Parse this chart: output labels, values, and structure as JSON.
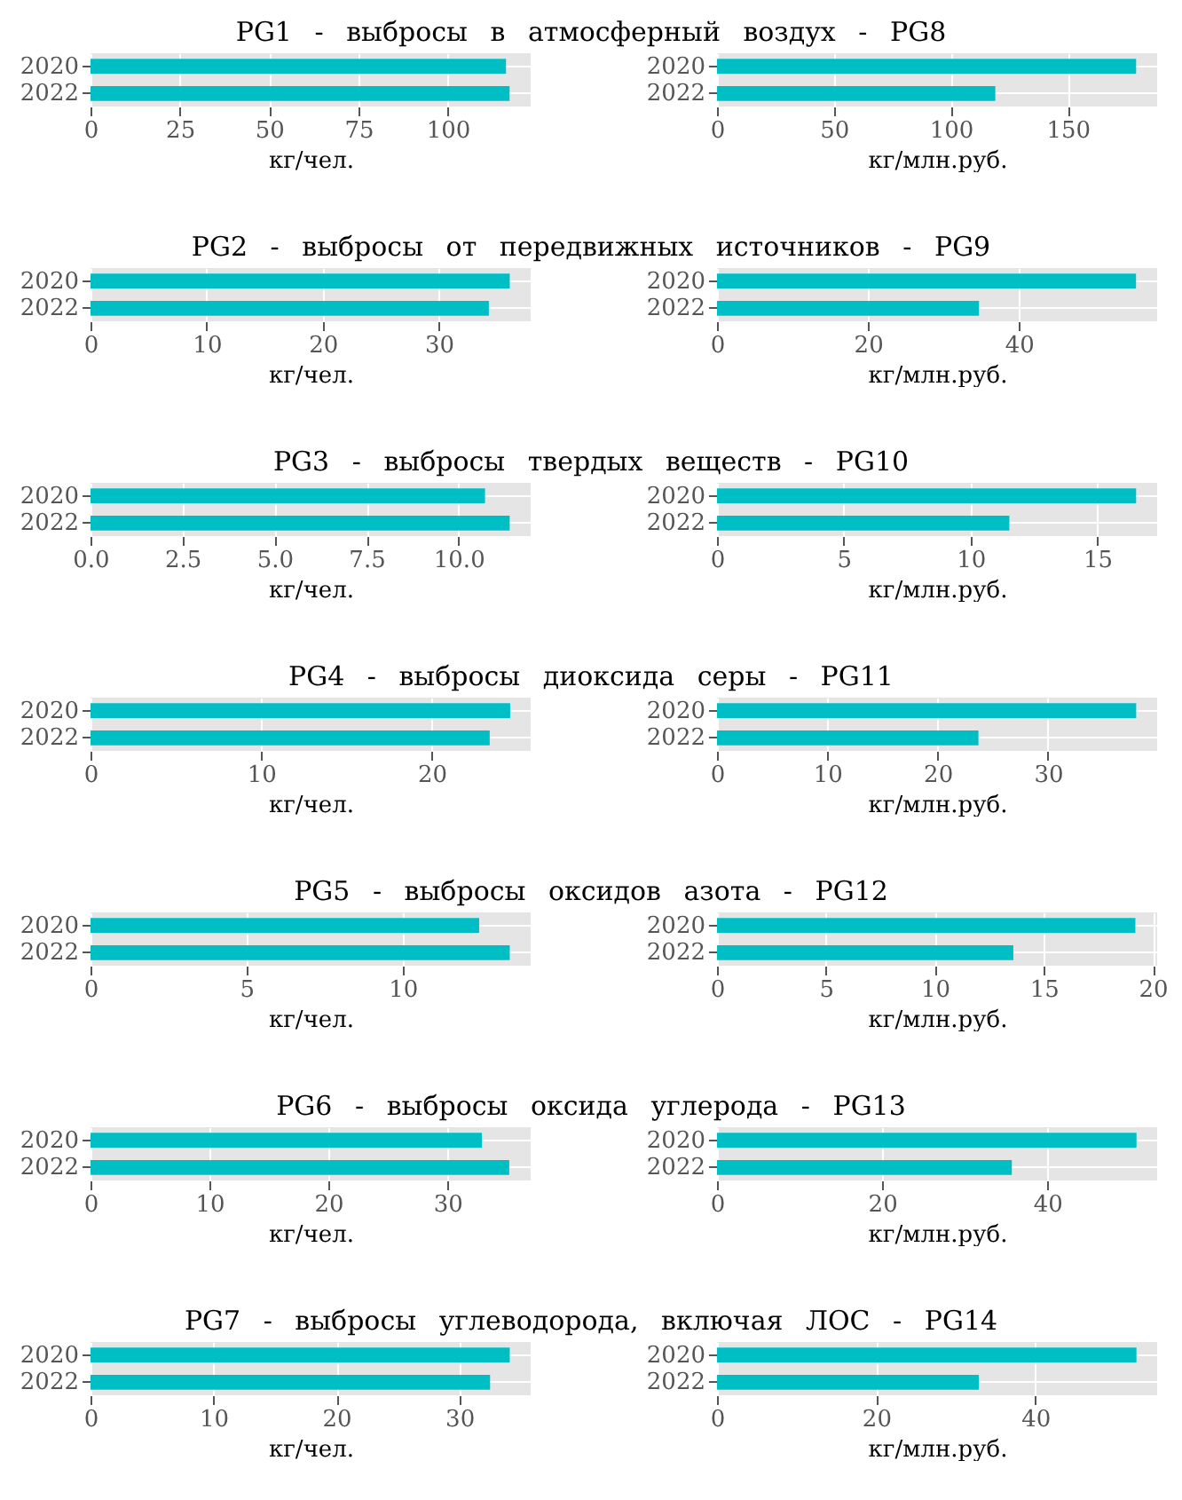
{
  "chart_data": [
    {
      "type": "bar",
      "orientation": "horizontal",
      "title": "PG1 - выбросы в атмосферный воздух - PG8",
      "categories": [
        "2020",
        "2022"
      ],
      "values": [
        116.3,
        117.3
      ],
      "color": "#00bfc4",
      "xlabel": "кг/чел.",
      "xlim": [
        0,
        123.2
      ],
      "xticks": [
        0,
        25,
        50,
        75,
        100
      ],
      "grid": true
    },
    {
      "type": "bar",
      "orientation": "horizontal",
      "categories": [
        "2020",
        "2022"
      ],
      "values": [
        179.2,
        119.0
      ],
      "color": "#00bfc4",
      "xlabel": "кг/млн.руб.",
      "xlim": [
        0,
        188.2
      ],
      "xticks": [
        0,
        50,
        100,
        150
      ],
      "grid": true
    },
    {
      "type": "bar",
      "orientation": "horizontal",
      "title": "PG2 - выбросы от передвижных источников - PG9",
      "categories": [
        "2020",
        "2022"
      ],
      "values": [
        36.1,
        34.3
      ],
      "color": "#00bfc4",
      "xlabel": "кг/чел.",
      "xlim": [
        0,
        37.9
      ],
      "xticks": [
        0,
        10,
        20,
        30
      ],
      "grid": true
    },
    {
      "type": "bar",
      "orientation": "horizontal",
      "categories": [
        "2020",
        "2022"
      ],
      "values": [
        55.5,
        34.7
      ],
      "color": "#00bfc4",
      "xlabel": "кг/млн.руб.",
      "xlim": [
        0,
        58.3
      ],
      "xticks": [
        0,
        20,
        40
      ],
      "grid": true
    },
    {
      "type": "bar",
      "orientation": "horizontal",
      "title": "PG3 - выбросы твердых веществ - PG10",
      "categories": [
        "2020",
        "2022"
      ],
      "values": [
        10.72,
        11.39
      ],
      "color": "#00bfc4",
      "xlabel": "кг/чел.",
      "xlim": [
        0,
        11.96
      ],
      "xticks": [
        {
          "value": 0,
          "label": "0.0"
        },
        2.5,
        {
          "value": 5,
          "label": "5.0"
        },
        7.5,
        {
          "value": 10,
          "label": "10.0"
        }
      ],
      "grid": true
    },
    {
      "type": "bar",
      "orientation": "horizontal",
      "categories": [
        "2020",
        "2022"
      ],
      "values": [
        16.53,
        11.53
      ],
      "color": "#00bfc4",
      "xlabel": "кг/млн.руб.",
      "xlim": [
        0,
        17.36
      ],
      "xticks": [
        0,
        5,
        10,
        15
      ],
      "grid": true
    },
    {
      "type": "bar",
      "orientation": "horizontal",
      "title": "PG4 - выбросы диоксида серы - PG11",
      "categories": [
        "2020",
        "2022"
      ],
      "values": [
        24.6,
        23.4
      ],
      "color": "#00bfc4",
      "xlabel": "кг/чел.",
      "xlim": [
        0,
        25.8
      ],
      "xticks": [
        0,
        10,
        20
      ],
      "grid": true
    },
    {
      "type": "bar",
      "orientation": "horizontal",
      "categories": [
        "2020",
        "2022"
      ],
      "values": [
        38.0,
        23.7
      ],
      "color": "#00bfc4",
      "xlabel": "кг/млн.руб.",
      "xlim": [
        0,
        39.9
      ],
      "xticks": [
        0,
        10,
        20,
        30
      ],
      "grid": true
    },
    {
      "type": "bar",
      "orientation": "horizontal",
      "title": "PG5 - выбросы оксидов азота - PG12",
      "categories": [
        "2020",
        "2022"
      ],
      "values": [
        12.45,
        13.43
      ],
      "color": "#00bfc4",
      "xlabel": "кг/чел.",
      "xlim": [
        0,
        14.1
      ],
      "xticks": [
        0,
        5,
        10
      ],
      "grid": true
    },
    {
      "type": "bar",
      "orientation": "horizontal",
      "categories": [
        "2020",
        "2022"
      ],
      "values": [
        19.2,
        13.6
      ],
      "color": "#00bfc4",
      "xlabel": "кг/млн.руб.",
      "xlim": [
        0,
        20.2
      ],
      "xticks": [
        0,
        5,
        10,
        15,
        20
      ],
      "grid": true
    },
    {
      "type": "bar",
      "orientation": "horizontal",
      "title": "PG6 - выбросы оксида углерода - PG13",
      "categories": [
        "2020",
        "2022"
      ],
      "values": [
        32.9,
        35.2
      ],
      "color": "#00bfc4",
      "xlabel": "кг/чел.",
      "xlim": [
        0,
        37.0
      ],
      "xticks": [
        0,
        10,
        20,
        30
      ],
      "grid": true
    },
    {
      "type": "bar",
      "orientation": "horizontal",
      "categories": [
        "2020",
        "2022"
      ],
      "values": [
        50.8,
        35.7
      ],
      "color": "#00bfc4",
      "xlabel": "кг/млн.руб.",
      "xlim": [
        0,
        53.3
      ],
      "xticks": [
        0,
        20,
        40
      ],
      "grid": true
    },
    {
      "type": "bar",
      "orientation": "horizontal",
      "title": "PG7 - выбросы углеводорода, включая ЛОС - PG14",
      "categories": [
        "2020",
        "2022"
      ],
      "values": [
        34.1,
        32.5
      ],
      "color": "#00bfc4",
      "xlabel": "кг/чел.",
      "xlim": [
        0,
        35.8
      ],
      "xticks": [
        0,
        10,
        20,
        30
      ],
      "grid": true
    },
    {
      "type": "bar",
      "orientation": "horizontal",
      "categories": [
        "2020",
        "2022"
      ],
      "values": [
        52.7,
        32.9
      ],
      "color": "#00bfc4",
      "xlabel": "кг/млн.руб.",
      "xlim": [
        0,
        55.3
      ],
      "xticks": [
        0,
        20,
        40
      ],
      "grid": true
    }
  ]
}
